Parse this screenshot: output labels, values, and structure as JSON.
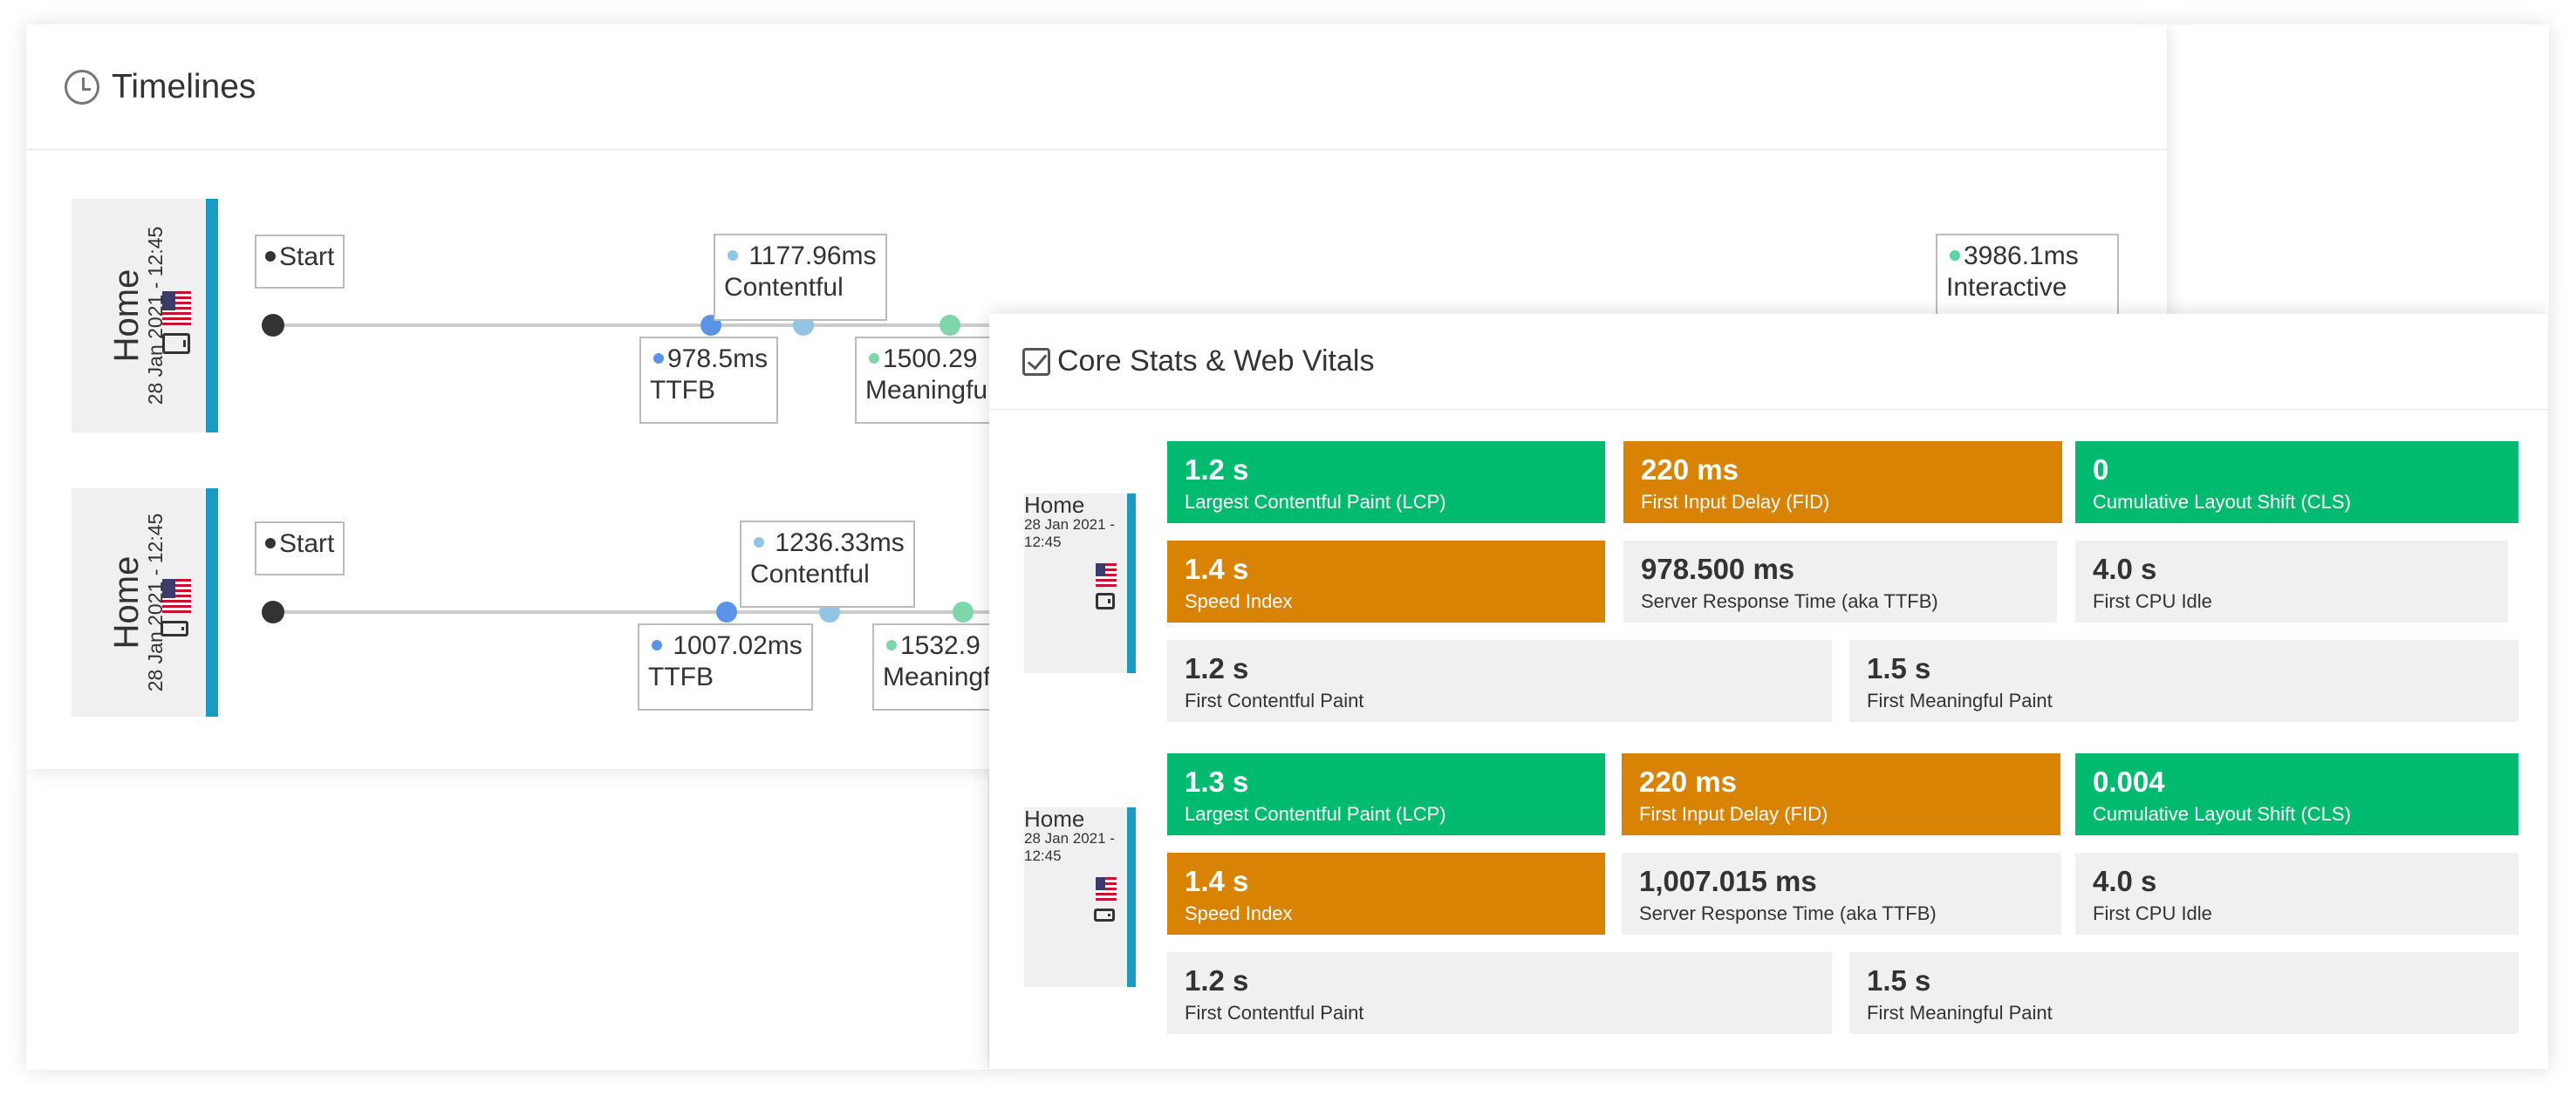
{
  "timelines": {
    "title": "Timelines",
    "rows": [
      {
        "page": "Home",
        "date": "28 Jan 2021 - 12:45",
        "start_label": "Start",
        "ttfb": {
          "value": "978.5ms",
          "label": "TTFB"
        },
        "contentful": {
          "value": "1177.96ms",
          "label": "Contentful"
        },
        "meaningful": {
          "value": "1500.29",
          "label": "Meaningful"
        },
        "interactive": {
          "value": "3986.1ms",
          "label": "Interactive"
        }
      },
      {
        "page": "Home",
        "date": "28 Jan 2021 - 12:45",
        "start_label": "Start",
        "ttfb": {
          "value": "1007.02ms",
          "label": "TTFB"
        },
        "contentful": {
          "value": "1236.33ms",
          "label": "Contentful"
        },
        "meaningful": {
          "value": "1532.9",
          "label": "Meaningful"
        }
      }
    ]
  },
  "vitals": {
    "title": "Core Stats & Web Vitals",
    "groups": [
      {
        "page": "Home",
        "date": "28 Jan 2021 - 12:45",
        "metrics": [
          {
            "value": "1.2 s",
            "label": "Largest Contentful Paint (LCP)",
            "status": "good"
          },
          {
            "value": "220 ms",
            "label": "First Input Delay (FID)",
            "status": "warn"
          },
          {
            "value": "0",
            "label": "Cumulative Layout Shift (CLS)",
            "status": "good"
          },
          {
            "value": "1.4 s",
            "label": "Speed Index",
            "status": "warn"
          },
          {
            "value": "978.500 ms",
            "label": "Server Response Time (aka TTFB)",
            "status": "neutral"
          },
          {
            "value": "4.0 s",
            "label": "First CPU Idle",
            "status": "neutral"
          },
          {
            "value": "1.2 s",
            "label": "First Contentful Paint",
            "status": "neutral"
          },
          {
            "value": "1.5 s",
            "label": "First Meaningful Paint",
            "status": "neutral"
          }
        ]
      },
      {
        "page": "Home",
        "date": "28 Jan 2021 - 12:45",
        "metrics": [
          {
            "value": "1.3 s",
            "label": "Largest Contentful Paint (LCP)",
            "status": "good"
          },
          {
            "value": "220 ms",
            "label": "First Input Delay (FID)",
            "status": "warn"
          },
          {
            "value": "0.004",
            "label": "Cumulative Layout Shift (CLS)",
            "status": "good"
          },
          {
            "value": "1.4 s",
            "label": "Speed Index",
            "status": "warn"
          },
          {
            "value": "1,007.015 ms",
            "label": "Server Response Time (aka TTFB)",
            "status": "neutral"
          },
          {
            "value": "4.0 s",
            "label": "First CPU Idle",
            "status": "neutral"
          },
          {
            "value": "1.2 s",
            "label": "First Contentful Paint",
            "status": "neutral"
          },
          {
            "value": "1.5 s",
            "label": "First Meaningful Paint",
            "status": "neutral"
          }
        ]
      }
    ]
  },
  "colors": {
    "good": "#00ba6f",
    "warn": "#d88303",
    "neutral": "#f0f0f0",
    "accent": "#1a9bc4"
  },
  "icons": {
    "timelines": "clock-icon",
    "vitals": "checkbox-icon",
    "country": "us-flag-icon",
    "device": "tablet-icon"
  }
}
